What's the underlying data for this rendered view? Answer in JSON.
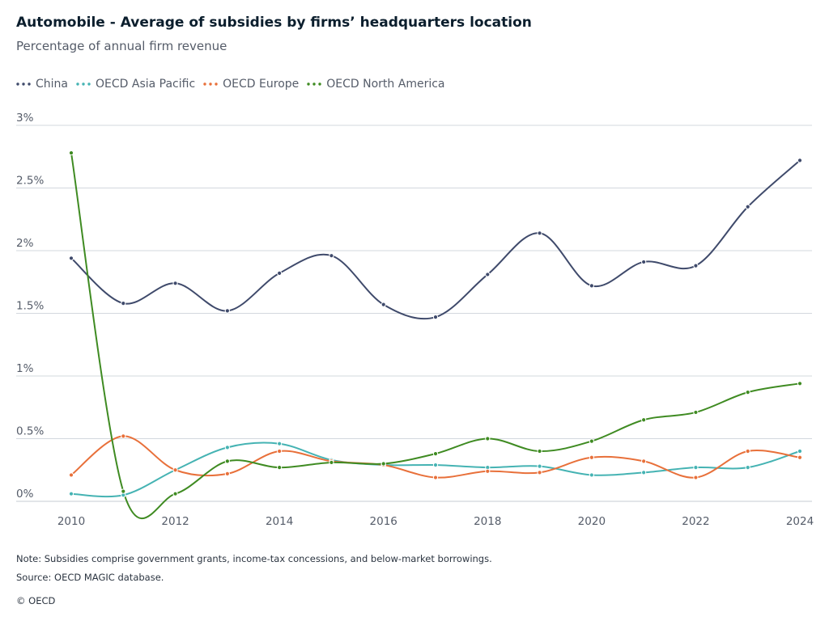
{
  "title": "Automobile - Average of subsidies by firms’ headquarters location",
  "subtitle": "Percentage of annual firm revenue",
  "note": "Note: Subsidies comprise government grants, income-tax concessions, and below-market borrowings.",
  "source": "Source: OECD MAGIC database.",
  "copyright": "© OECD",
  "chart_data": {
    "type": "line",
    "title": "Automobile - Average of subsidies by firms’ headquarters location",
    "subtitle": "Percentage of annual firm revenue",
    "xlabel": "",
    "ylabel": "",
    "x": [
      2010,
      2011,
      2012,
      2013,
      2014,
      2015,
      2016,
      2017,
      2018,
      2019,
      2020,
      2021,
      2022,
      2023,
      2024
    ],
    "x_ticks": [
      "2010",
      "2012",
      "2014",
      "2016",
      "2018",
      "2020",
      "2022",
      "2024"
    ],
    "y_ticks": [
      {
        "value": 0,
        "label": "0%"
      },
      {
        "value": 0.5,
        "label": "0.5%"
      },
      {
        "value": 1,
        "label": "1%"
      },
      {
        "value": 1.5,
        "label": "1.5%"
      },
      {
        "value": 2,
        "label": "2%"
      },
      {
        "value": 2.5,
        "label": "2.5%"
      },
      {
        "value": 3,
        "label": "3%"
      }
    ],
    "ylim": [
      0,
      3
    ],
    "xlim": [
      2010,
      2024
    ],
    "grid": "horizontal",
    "legend_position": "top-left",
    "series": [
      {
        "name": "China",
        "color": "#3f4a6b",
        "values": [
          1.94,
          1.58,
          1.74,
          1.52,
          1.82,
          1.96,
          1.57,
          1.47,
          1.81,
          2.14,
          1.72,
          1.91,
          1.88,
          2.35,
          2.72
        ]
      },
      {
        "name": "OECD Asia Pacific",
        "color": "#45b3b3",
        "values": [
          0.06,
          0.05,
          0.25,
          0.43,
          0.46,
          0.33,
          0.29,
          0.29,
          0.27,
          0.28,
          0.21,
          0.23,
          0.27,
          0.27,
          0.4
        ]
      },
      {
        "name": "OECD Europe",
        "color": "#e8703a",
        "values": [
          0.21,
          0.52,
          0.25,
          0.22,
          0.4,
          0.32,
          0.29,
          0.19,
          0.24,
          0.23,
          0.35,
          0.32,
          0.19,
          0.4,
          0.35
        ]
      },
      {
        "name": "OECD North America",
        "color": "#3f8b22",
        "values": [
          2.78,
          0.08,
          0.06,
          0.32,
          0.27,
          0.31,
          0.3,
          0.38,
          0.5,
          0.4,
          0.48,
          0.65,
          0.71,
          0.87,
          0.94
        ]
      }
    ]
  }
}
